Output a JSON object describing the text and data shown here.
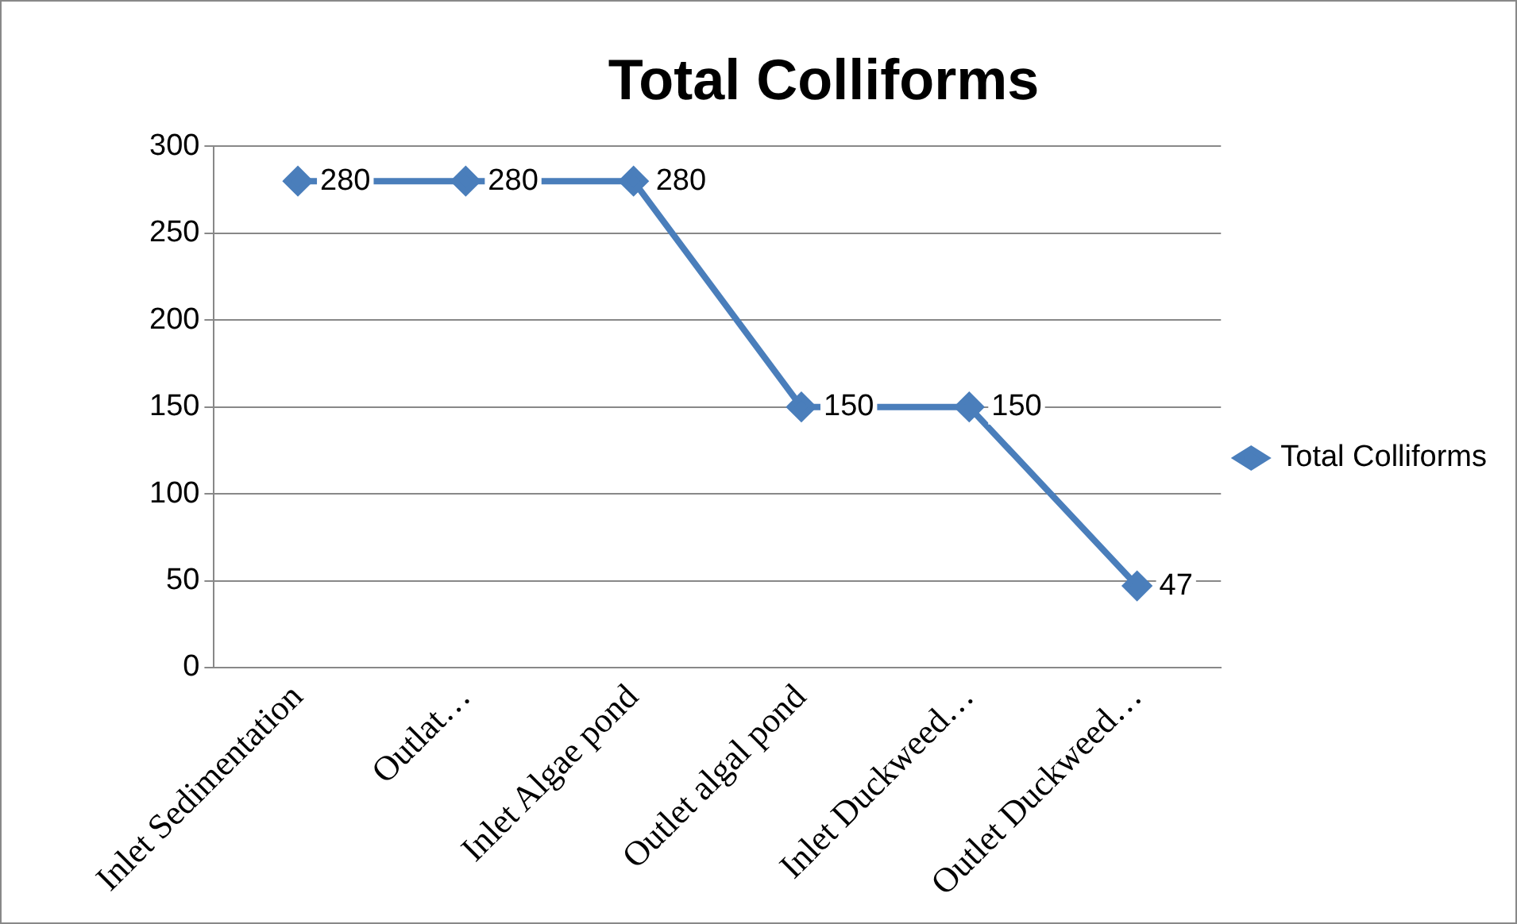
{
  "chart_data": {
    "type": "line",
    "title": "Total Colliforms",
    "categories": [
      "Inlet Sedimentation",
      "Outlat…",
      "Inlet Algae pond",
      "Outlet algal pond",
      "Inlet Duckweed…",
      "Outlet Duckweed…"
    ],
    "series": [
      {
        "name": "Total Colliforms",
        "color": "#4a7ebb",
        "values": [
          280,
          280,
          280,
          150,
          150,
          47
        ]
      }
    ],
    "ylim": [
      0,
      300
    ],
    "yticks": [
      0,
      50,
      100,
      150,
      200,
      250,
      300
    ],
    "grid": "y",
    "legend": "right",
    "marker": "diamond",
    "line_style": "solid",
    "data_labels": true
  }
}
